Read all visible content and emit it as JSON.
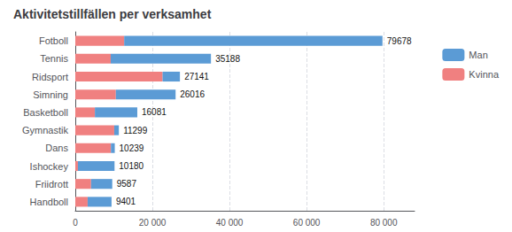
{
  "chart_data": {
    "type": "bar",
    "title": "Aktivitetstillfällen per verksamhet",
    "orientation": "horizontal",
    "stacked": true,
    "categories": [
      "Fotboll",
      "Tennis",
      "Ridsport",
      "Simning",
      "Basketboll",
      "Gymnastik",
      "Dans",
      "Ishockey",
      "Friidrott",
      "Handboll"
    ],
    "series": [
      {
        "name": "Kvinna",
        "color": "#F08080",
        "values": [
          12678,
          9188,
          22641,
          10516,
          5081,
          10099,
          9239,
          680,
          4087,
          3201
        ]
      },
      {
        "name": "Man",
        "color": "#5B9BD5",
        "values": [
          67000,
          26000,
          4500,
          15500,
          11000,
          1200,
          1000,
          9500,
          5500,
          6200
        ]
      }
    ],
    "totals": [
      79678,
      35188,
      27141,
      26016,
      16081,
      11299,
      10239,
      10180,
      9587,
      9401
    ],
    "xlim": [
      0,
      88000
    ],
    "xticks": [
      0,
      {
        "value": 20000,
        "label": "20 000"
      },
      {
        "value": 40000,
        "label": "40 000"
      },
      {
        "value": 60000,
        "label": "60 000"
      },
      {
        "value": 80000,
        "label": "80 000"
      }
    ],
    "grid": true,
    "legend": "right"
  }
}
